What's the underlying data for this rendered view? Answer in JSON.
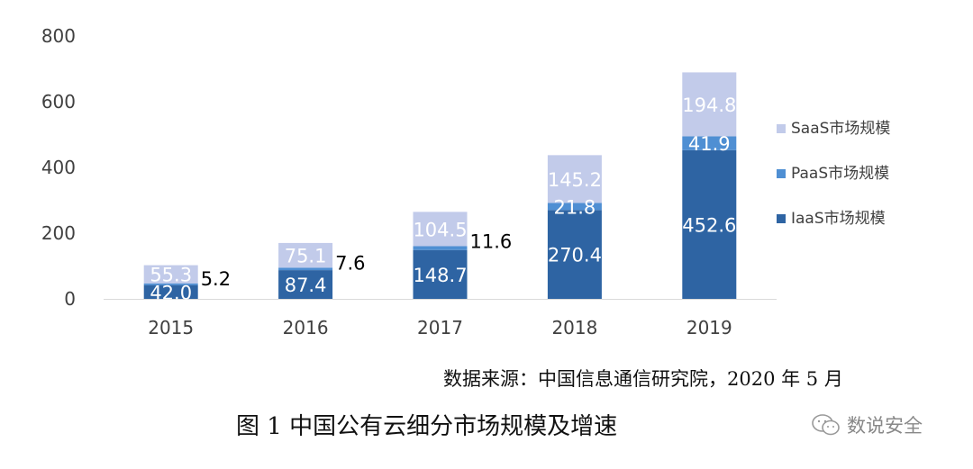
{
  "chart_data": {
    "type": "bar",
    "stacked": true,
    "categories": [
      "2015",
      "2016",
      "2017",
      "2018",
      "2019"
    ],
    "series": [
      {
        "name": "IaaS市场规模",
        "color": "#2E64A3",
        "values": [
          42.0,
          87.4,
          148.7,
          270.4,
          452.6
        ],
        "labels": [
          "42.0",
          "87.4",
          "148.7",
          "270.4",
          "452.6"
        ]
      },
      {
        "name": "PaaS市场规模",
        "color": "#4F8FD3",
        "values": [
          5.2,
          7.6,
          11.6,
          21.8,
          41.9
        ],
        "labels": [
          "5.2",
          "7.6",
          "11.6",
          "21.8",
          "41.9"
        ]
      },
      {
        "name": "SaaS市场规模",
        "color": "#C2CBEA",
        "values": [
          55.3,
          75.1,
          104.5,
          145.2,
          194.8
        ],
        "labels": [
          "55.3",
          "75.1",
          "104.5",
          "145.2",
          "194.8"
        ]
      }
    ],
    "ylim": [
      0,
      800
    ],
    "yticks": [
      "0",
      "200",
      "400",
      "600",
      "800"
    ],
    "grid": false,
    "legend": "right"
  },
  "source_text": "数据来源：中国信息通信研究院，2020 年 5 月",
  "caption_text": "图 1  中国公有云细分市场规模及增速",
  "watermark_text": "数说安全",
  "watermark_icon": "wechat-icon"
}
